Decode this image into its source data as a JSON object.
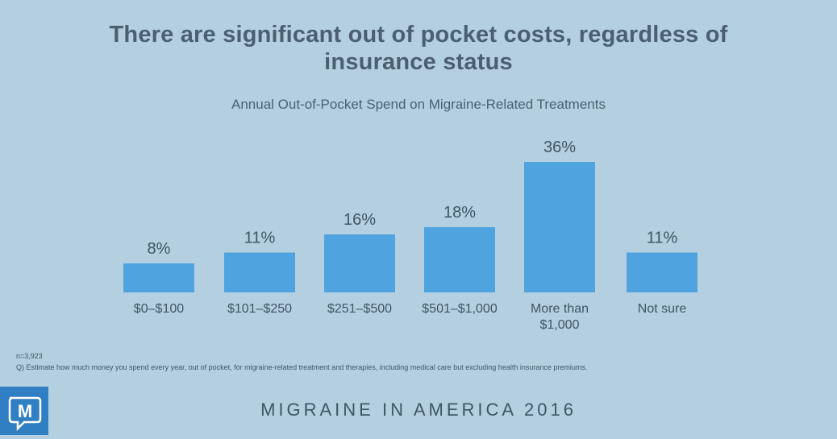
{
  "header": {
    "title_line1": "There are significant out of pocket costs, regardless of",
    "title_line2": "insurance status"
  },
  "chart_data": {
    "type": "bar",
    "title": "Annual Out-of-Pocket Spend on Migraine-Related Treatments",
    "categories": [
      [
        "$0–$100"
      ],
      [
        "$101–$250"
      ],
      [
        "$251–$500"
      ],
      [
        "$501–$1,000"
      ],
      [
        "More than",
        "$1,000"
      ],
      [
        "Not sure"
      ]
    ],
    "values": [
      8,
      11,
      16,
      18,
      36,
      11
    ],
    "data_labels": [
      "8%",
      "11%",
      "16%",
      "18%",
      "36%",
      "11%"
    ],
    "unit": "%",
    "ylim": [
      0,
      36
    ],
    "grid": false,
    "bar_color": "#4fa3df"
  },
  "notes": {
    "sample": "n=3,923",
    "question": "Q) Estimate how much money you spend every year, out of pocket, for migraine-related treatment and therapies, including medical care but excluding health insurance premiums."
  },
  "footer": {
    "title": "MIGRAINE IN AMERICA 2016",
    "logo_letter": "M"
  },
  "colors": {
    "background": "#b4cfe0",
    "text": "#3f5566",
    "logo": "#2f7fc2"
  }
}
